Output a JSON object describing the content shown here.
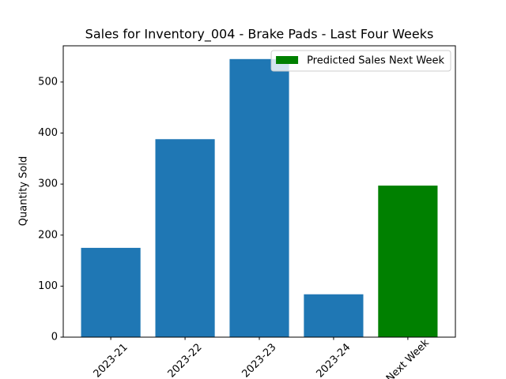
{
  "chart_data": {
    "type": "bar",
    "title": "Sales for Inventory_004 - Brake Pads - Last Four Weeks",
    "y_label": "Quantity Sold",
    "categories": [
      "2023-21",
      "2023-22",
      "2023-23",
      "2023-24",
      "Next Week"
    ],
    "values": [
      175,
      388,
      545,
      84,
      297
    ],
    "colors": [
      "#1f77b4",
      "#1f77b4",
      "#1f77b4",
      "#1f77b4",
      "green"
    ],
    "legend": {
      "label": "Predicted Sales Next Week",
      "color": "green",
      "position": "upper right"
    },
    "ylim": [
      0,
      571
    ],
    "yticks": [
      0,
      100,
      200,
      300,
      400,
      500
    ]
  }
}
